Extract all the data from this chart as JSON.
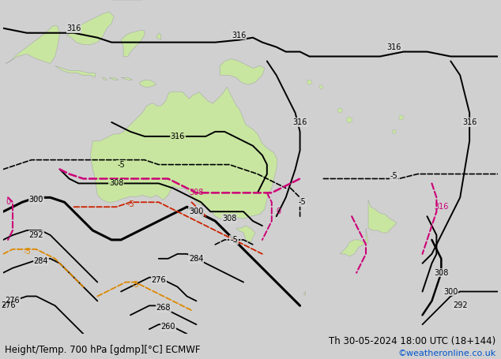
{
  "title_left": "Height/Temp. 700 hPa [gdmp][°C] ECMWF",
  "title_right": "Th 30-05-2024 18:00 UTC (18+144)",
  "watermark": "©weatheronline.co.uk",
  "bg_color": "#d0d0d0",
  "land_color": "#c8e6a0",
  "land_edge": "#aaaaaa",
  "sea_color": "#d8d8d8",
  "font_size_title": 8.5,
  "font_size_label": 7,
  "c_black": "#000000",
  "c_pink": "#cc0077",
  "c_red": "#cc2200",
  "c_orange": "#dd8800",
  "lon_min": 95,
  "lon_max": 200,
  "lat_min": -63,
  "lat_max": 8
}
